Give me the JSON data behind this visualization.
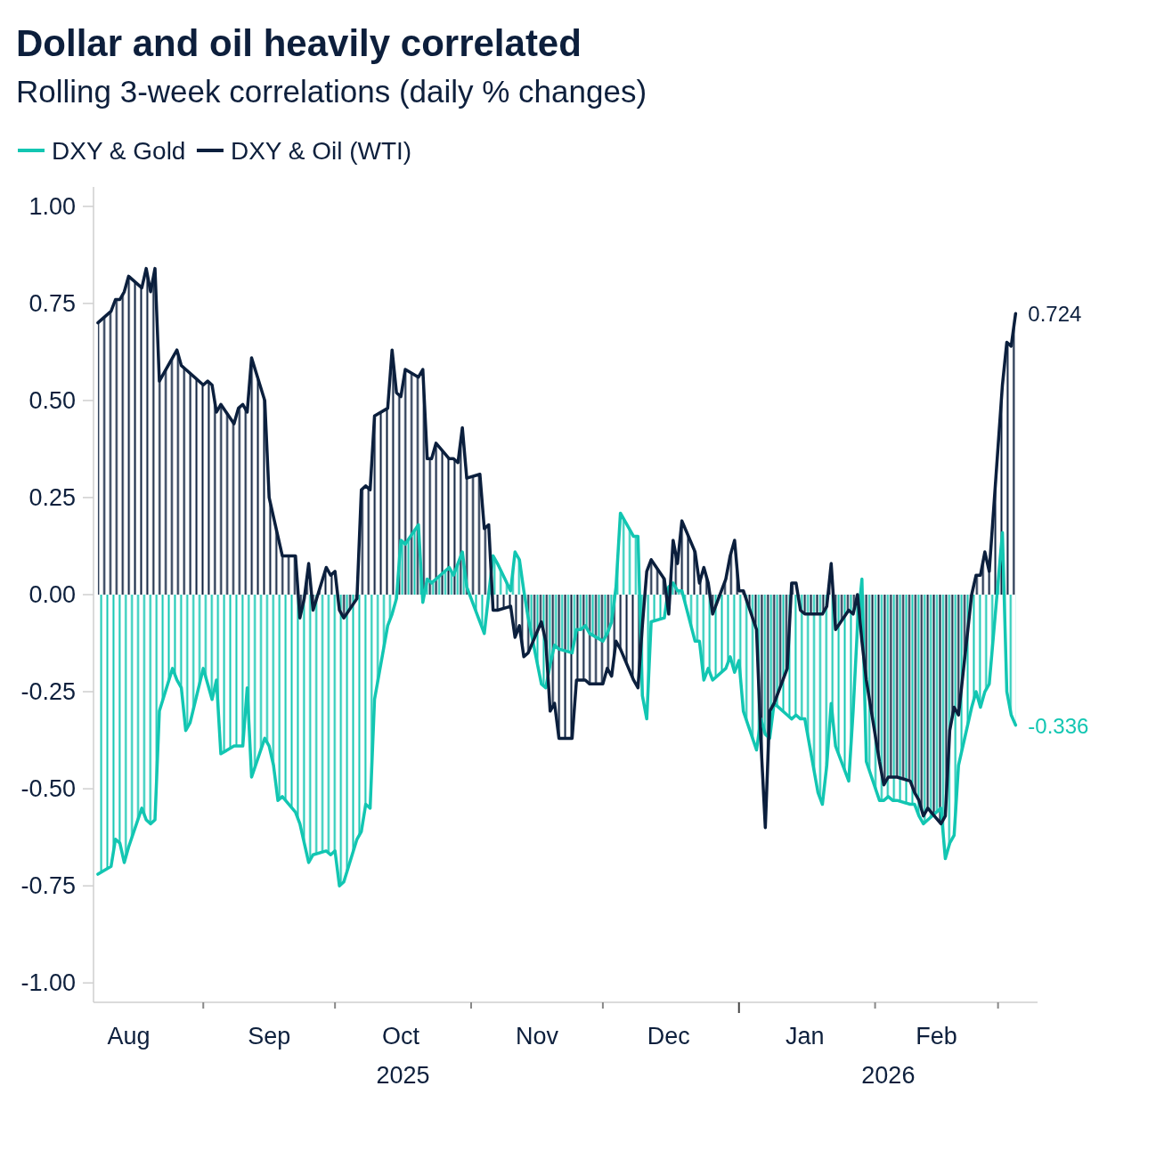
{
  "chart_data": {
    "type": "area",
    "title": "Dollar and oil heavily correlated",
    "subtitle": "Rolling 3-week correlations (daily % changes)",
    "legend": "top left",
    "x": [
      "2025-08-08",
      "2025-08-11",
      "2025-08-12",
      "2025-08-13",
      "2025-08-14",
      "2025-08-15",
      "2025-08-18",
      "2025-08-19",
      "2025-08-20",
      "2025-08-21",
      "2025-08-22",
      "2025-08-25",
      "2025-08-26",
      "2025-08-27",
      "2025-08-28",
      "2025-08-29",
      "2025-09-01",
      "2025-09-02",
      "2025-09-03",
      "2025-09-04",
      "2025-09-05",
      "2025-09-08",
      "2025-09-09",
      "2025-09-10",
      "2025-09-11",
      "2025-09-12",
      "2025-09-15",
      "2025-09-16",
      "2025-09-17",
      "2025-09-18",
      "2025-09-19",
      "2025-09-22",
      "2025-09-23",
      "2025-09-24",
      "2025-09-25",
      "2025-09-26",
      "2025-09-29",
      "2025-09-30",
      "2025-10-01",
      "2025-10-02",
      "2025-10-03",
      "2025-10-06",
      "2025-10-07",
      "2025-10-08",
      "2025-10-09",
      "2025-10-10",
      "2025-10-13",
      "2025-10-14",
      "2025-10-15",
      "2025-10-16",
      "2025-10-17",
      "2025-10-20",
      "2025-10-21",
      "2025-10-22",
      "2025-10-23",
      "2025-10-24",
      "2025-10-27",
      "2025-10-28",
      "2025-10-29",
      "2025-10-30",
      "2025-10-31",
      "2025-11-03",
      "2025-11-04",
      "2025-11-05",
      "2025-11-06",
      "2025-11-07",
      "2025-11-10",
      "2025-11-11",
      "2025-11-12",
      "2025-11-13",
      "2025-11-14",
      "2025-11-17",
      "2025-11-18",
      "2025-11-19",
      "2025-11-20",
      "2025-11-21",
      "2025-11-24",
      "2025-11-25",
      "2025-11-26",
      "2025-11-27",
      "2025-11-28",
      "2025-12-01",
      "2025-12-02",
      "2025-12-03",
      "2025-12-04",
      "2025-12-05",
      "2025-12-08",
      "2025-12-09",
      "2025-12-10",
      "2025-12-11",
      "2025-12-12",
      "2025-12-15",
      "2025-12-16",
      "2025-12-17",
      "2025-12-18",
      "2025-12-19",
      "2025-12-22",
      "2025-12-23",
      "2025-12-24",
      "2025-12-25",
      "2025-12-26",
      "2025-12-29",
      "2025-12-30",
      "2025-12-31",
      "2026-01-01",
      "2026-01-02",
      "2026-01-05",
      "2026-01-06",
      "2026-01-07",
      "2026-01-08",
      "2026-01-09",
      "2026-01-12",
      "2026-01-13",
      "2026-01-14",
      "2026-01-15",
      "2026-01-16",
      "2026-01-19",
      "2026-01-20",
      "2026-01-21",
      "2026-01-22",
      "2026-01-23",
      "2026-01-26",
      "2026-01-27",
      "2026-01-28",
      "2026-01-29",
      "2026-01-30",
      "2026-02-02",
      "2026-02-03",
      "2026-02-04",
      "2026-02-05",
      "2026-02-06",
      "2026-02-09",
      "2026-02-10",
      "2026-02-11",
      "2026-02-12",
      "2026-02-13",
      "2026-02-16",
      "2026-02-17",
      "2026-02-18",
      "2026-02-19",
      "2026-02-20",
      "2026-02-23",
      "2026-02-24",
      "2026-02-25",
      "2026-02-26",
      "2026-02-27",
      "2026-03-02",
      "2026-03-03",
      "2026-03-04",
      "2026-03-05"
    ],
    "xlim": [
      "2025-08-07",
      "2026-03-10"
    ],
    "xticks": [
      {
        "value": "2025-08-15",
        "label": "Aug"
      },
      {
        "value": "2025-09-01",
        "label": null
      },
      {
        "value": "2025-09-16",
        "label": "Sep"
      },
      {
        "value": "2025-10-01",
        "label": null
      },
      {
        "value": "2025-10-16",
        "label": "Oct"
      },
      {
        "value": "2025-11-01",
        "label": null
      },
      {
        "value": "2025-11-16",
        "label": "Nov"
      },
      {
        "value": "2025-12-01",
        "label": null
      },
      {
        "value": "2025-12-16",
        "label": "Dec"
      },
      {
        "value": "2026-01-01",
        "label": null
      },
      {
        "value": "2026-01-16",
        "label": "Jan"
      },
      {
        "value": "2026-02-01",
        "label": null
      },
      {
        "value": "2026-02-15",
        "label": "Feb"
      },
      {
        "value": "2026-03-01",
        "label": null
      }
    ],
    "annotations": [
      "2025",
      "2026"
    ],
    "ylim": [
      -1.05,
      1.05
    ],
    "yticks": [
      {
        "value": -1,
        "label": "-1.00"
      },
      {
        "value": -0.75,
        "label": "-0.75"
      },
      {
        "value": -0.5,
        "label": "-0.50"
      },
      {
        "value": -0.25,
        "label": "-0.25"
      },
      {
        "value": 0,
        "label": "0.00"
      },
      {
        "value": 0.25,
        "label": "0.25"
      },
      {
        "value": 0.5,
        "label": "0.50"
      },
      {
        "value": 0.75,
        "label": "0.75"
      },
      {
        "value": 1,
        "label": "1.00"
      }
    ],
    "series": [
      {
        "name": "DXY & Gold",
        "color": "#12c6b2",
        "values": [
          -0.72,
          -0.7,
          -0.63,
          -0.64,
          -0.69,
          -0.65,
          -0.55,
          -0.58,
          -0.59,
          -0.58,
          -0.3,
          -0.19,
          -0.22,
          -0.24,
          -0.35,
          -0.33,
          -0.19,
          -0.23,
          -0.27,
          -0.22,
          -0.41,
          -0.39,
          -0.39,
          -0.39,
          -0.24,
          -0.47,
          -0.37,
          -0.39,
          -0.44,
          -0.53,
          -0.52,
          -0.56,
          -0.59,
          -0.64,
          -0.69,
          -0.67,
          -0.66,
          -0.67,
          -0.66,
          -0.75,
          -0.74,
          -0.63,
          -0.61,
          -0.54,
          -0.55,
          -0.27,
          -0.08,
          -0.05,
          -0.01,
          0.14,
          0.13,
          0.18,
          -0.02,
          0.04,
          0.03,
          0.04,
          0.07,
          0.05,
          0.08,
          0.11,
          0.02,
          -0.07,
          -0.1,
          0.0,
          0.1,
          0.08,
          0.01,
          0.11,
          0.09,
          0.01,
          -0.06,
          -0.23,
          -0.24,
          -0.18,
          -0.13,
          -0.14,
          -0.15,
          -0.09,
          -0.09,
          -0.08,
          -0.1,
          -0.12,
          -0.1,
          -0.07,
          0.02,
          0.21,
          0.15,
          0.15,
          -0.26,
          -0.32,
          -0.07,
          -0.06,
          0.02,
          0.03,
          0.01,
          0.01,
          -0.12,
          -0.12,
          -0.22,
          -0.19,
          -0.22,
          -0.19,
          -0.16,
          -0.2,
          -0.17,
          -0.3,
          -0.4,
          -0.32,
          -0.36,
          -0.37,
          -0.28,
          -0.31,
          -0.32,
          -0.31,
          -0.32,
          -0.32,
          -0.51,
          -0.54,
          -0.44,
          -0.28,
          -0.39,
          -0.48,
          -0.3,
          -0.08,
          0.04,
          -0.43,
          -0.53,
          -0.53,
          -0.52,
          -0.53,
          -0.53,
          -0.54,
          -0.54,
          -0.57,
          -0.59,
          -0.58,
          -0.55,
          -0.68,
          -0.64,
          -0.62,
          -0.44,
          -0.29,
          -0.25,
          -0.29,
          -0.25,
          -0.23,
          0.16,
          -0.25,
          -0.31,
          -0.336
        ],
        "value_labels": [
          null,
          null,
          null,
          null,
          null,
          null,
          null,
          null,
          null,
          null,
          null,
          null,
          null,
          null,
          null,
          null,
          null,
          null,
          null,
          null,
          null,
          null,
          null,
          null,
          null,
          null,
          null,
          null,
          null,
          null,
          null,
          null,
          null,
          null,
          null,
          null,
          null,
          null,
          null,
          null,
          null,
          null,
          null,
          null,
          null,
          null,
          null,
          null,
          null,
          null,
          null,
          null,
          null,
          null,
          null,
          null,
          null,
          null,
          null,
          null,
          null,
          null,
          null,
          null,
          null,
          null,
          null,
          null,
          null,
          null,
          null,
          null,
          null,
          null,
          null,
          null,
          null,
          null,
          null,
          null,
          null,
          null,
          null,
          null,
          null,
          null,
          null,
          null,
          null,
          null,
          null,
          null,
          null,
          null,
          null,
          null,
          null,
          null,
          null,
          null,
          null,
          null,
          null,
          null,
          null,
          null,
          null,
          null,
          null,
          null,
          null,
          null,
          null,
          null,
          null,
          null,
          null,
          null,
          null,
          null,
          null,
          null,
          null,
          null,
          null,
          null,
          null,
          null,
          null,
          null,
          null,
          null,
          null,
          null,
          null,
          null,
          null,
          null,
          null,
          null,
          null,
          null,
          null,
          null,
          null,
          null,
          null,
          null,
          null,
          "-0.336"
        ]
      },
      {
        "name": "DXY & Oil (WTI)",
        "color": "#0b1f3d",
        "values": [
          0.7,
          0.73,
          0.76,
          0.76,
          0.78,
          0.82,
          0.79,
          0.84,
          0.78,
          0.84,
          0.55,
          0.61,
          0.63,
          0.59,
          0.58,
          0.57,
          0.54,
          0.55,
          0.54,
          0.47,
          0.49,
          0.44,
          0.48,
          0.49,
          0.47,
          0.61,
          0.5,
          0.25,
          0.2,
          0.15,
          0.1,
          0.1,
          -0.06,
          -0.01,
          0.08,
          -0.04,
          0.07,
          0.05,
          0.06,
          -0.04,
          -0.06,
          -0.01,
          0.27,
          0.28,
          0.27,
          0.46,
          0.48,
          0.63,
          0.52,
          0.51,
          0.58,
          0.56,
          0.58,
          0.35,
          0.35,
          0.39,
          0.35,
          0.35,
          0.34,
          0.43,
          0.3,
          0.31,
          0.17,
          0.18,
          -0.04,
          -0.04,
          -0.03,
          -0.11,
          -0.08,
          -0.16,
          -0.15,
          -0.07,
          -0.12,
          -0.3,
          -0.28,
          -0.37,
          -0.37,
          -0.22,
          -0.22,
          -0.22,
          -0.23,
          -0.23,
          -0.19,
          -0.21,
          -0.12,
          -0.14,
          -0.22,
          -0.24,
          -0.08,
          0.06,
          0.09,
          0.04,
          -0.05,
          0.14,
          0.08,
          0.19,
          0.11,
          0.03,
          0.07,
          0.03,
          -0.05,
          0.04,
          0.1,
          0.14,
          0.01,
          0.01,
          -0.09,
          -0.38,
          -0.6,
          -0.3,
          -0.28,
          -0.19,
          0.03,
          0.03,
          -0.04,
          -0.05,
          -0.05,
          -0.05,
          -0.03,
          0.08,
          -0.09,
          -0.04,
          -0.05,
          0.0,
          -0.12,
          -0.22,
          -0.43,
          -0.49,
          -0.47,
          -0.47,
          -0.47,
          -0.48,
          -0.51,
          -0.53,
          -0.57,
          -0.55,
          -0.59,
          -0.57,
          -0.35,
          -0.29,
          -0.31,
          0.0,
          0.05,
          0.05,
          0.11,
          0.06,
          0.54,
          0.65,
          0.64,
          0.724
        ],
        "value_labels": [
          null,
          null,
          null,
          null,
          null,
          null,
          null,
          null,
          null,
          null,
          null,
          null,
          null,
          null,
          null,
          null,
          null,
          null,
          null,
          null,
          null,
          null,
          null,
          null,
          null,
          null,
          null,
          null,
          null,
          null,
          null,
          null,
          null,
          null,
          null,
          null,
          null,
          null,
          null,
          null,
          null,
          null,
          null,
          null,
          null,
          null,
          null,
          null,
          null,
          null,
          null,
          null,
          null,
          null,
          null,
          null,
          null,
          null,
          null,
          null,
          null,
          null,
          null,
          null,
          null,
          null,
          null,
          null,
          null,
          null,
          null,
          null,
          null,
          null,
          null,
          null,
          null,
          null,
          null,
          null,
          null,
          null,
          null,
          null,
          null,
          null,
          null,
          null,
          null,
          null,
          null,
          null,
          null,
          null,
          null,
          null,
          null,
          null,
          null,
          null,
          null,
          null,
          null,
          null,
          null,
          null,
          null,
          null,
          null,
          null,
          null,
          null,
          null,
          null,
          null,
          null,
          null,
          null,
          null,
          null,
          null,
          null,
          null,
          null,
          null,
          null,
          null,
          null,
          null,
          null,
          null,
          null,
          null,
          null,
          null,
          null,
          null,
          null,
          null,
          null,
          null,
          null,
          null,
          null,
          null,
          null,
          null,
          null,
          null,
          "0.724"
        ]
      }
    ]
  }
}
